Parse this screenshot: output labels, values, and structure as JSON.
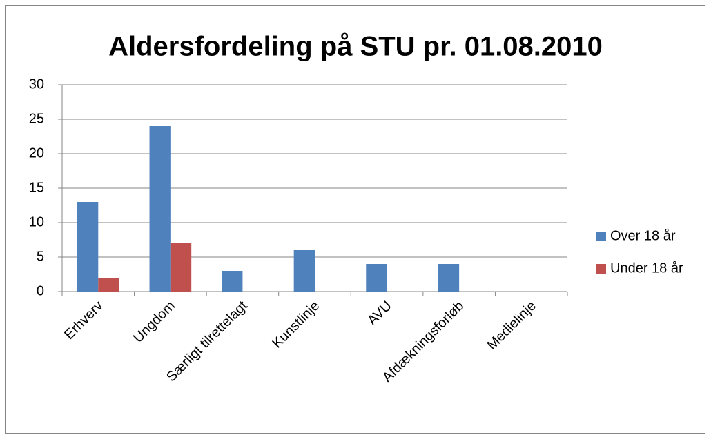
{
  "chart_data": {
    "type": "bar",
    "title": "Aldersfordeling på STU pr. 01.08.2010",
    "categories": [
      "Erhverv",
      "Ungdom",
      "Særligt tilrettelagt",
      "Kunstlinje",
      "AVU",
      "Afdækningsforløb",
      "Medielinje"
    ],
    "series": [
      {
        "name": "Over 18 år",
        "color": "#4f81bd",
        "values": [
          13,
          24,
          3,
          6,
          4,
          4,
          0
        ]
      },
      {
        "name": "Under 18 år",
        "color": "#c0504d",
        "values": [
          2,
          7,
          0,
          0,
          0,
          0,
          0
        ]
      }
    ],
    "ylim": [
      0,
      30
    ],
    "yticks": [
      0,
      5,
      10,
      15,
      20,
      25,
      30
    ],
    "grid": true,
    "legend": "right"
  }
}
